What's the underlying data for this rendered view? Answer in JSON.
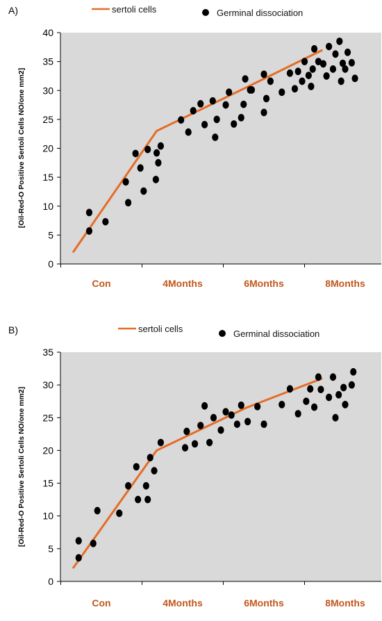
{
  "chart_data": [
    {
      "type": "scatter",
      "panel_label": "A)",
      "ylabel": "[Oil-Red-O Positive Sertoli Cells NO/one mm2]",
      "categories": [
        "Con",
        "4Months",
        "6Months",
        "8Months"
      ],
      "ylim": [
        0,
        40
      ],
      "yticks": [
        0,
        5,
        10,
        15,
        20,
        25,
        30,
        35,
        40
      ],
      "grid": false,
      "legend_position": "top",
      "colors": {
        "line": "#e46c27",
        "marker": "#000000",
        "plot_bg": "#d9d9d9",
        "category_label": "#c0571c"
      },
      "line_series": {
        "name": "sertoli cells",
        "x": [
          -0.35,
          0.68,
          1.78,
          2.72
        ],
        "y": [
          2,
          23,
          30.5,
          37
        ]
      },
      "scatter_series": {
        "name": "Germinal dissociation",
        "points": [
          [
            -0.15,
            5.7
          ],
          [
            -0.15,
            8.9
          ],
          [
            0.05,
            7.3
          ],
          [
            0.3,
            14.2
          ],
          [
            0.33,
            10.6
          ],
          [
            0.42,
            19.1
          ],
          [
            0.48,
            16.6
          ],
          [
            0.52,
            12.6
          ],
          [
            0.57,
            19.8
          ],
          [
            0.67,
            14.6
          ],
          [
            0.7,
            17.5
          ],
          [
            0.73,
            20.4
          ],
          [
            0.68,
            19.2
          ],
          [
            0.98,
            24.9
          ],
          [
            1.07,
            22.8
          ],
          [
            1.13,
            26.5
          ],
          [
            1.22,
            27.7
          ],
          [
            1.27,
            24.1
          ],
          [
            1.37,
            28.2
          ],
          [
            1.4,
            21.9
          ],
          [
            1.42,
            25
          ],
          [
            1.53,
            27.5
          ],
          [
            1.57,
            29.7
          ],
          [
            1.63,
            24.2
          ],
          [
            1.72,
            25.3
          ],
          [
            1.75,
            27.6
          ],
          [
            1.77,
            32
          ],
          [
            1.83,
            30.1
          ],
          [
            1.85,
            30.1
          ],
          [
            2.0,
            32.8
          ],
          [
            2.0,
            26.2
          ],
          [
            2.03,
            28.6
          ],
          [
            2.08,
            31.6
          ],
          [
            2.22,
            29.7
          ],
          [
            2.32,
            33
          ],
          [
            2.38,
            30.3
          ],
          [
            2.42,
            33.3
          ],
          [
            2.47,
            31.6
          ],
          [
            2.5,
            35
          ],
          [
            2.55,
            32.6
          ],
          [
            2.58,
            30.7
          ],
          [
            2.6,
            33.7
          ],
          [
            2.62,
            37.2
          ],
          [
            2.67,
            35
          ],
          [
            2.73,
            34.6
          ],
          [
            2.77,
            32.5
          ],
          [
            2.8,
            37.6
          ],
          [
            2.85,
            33.7
          ],
          [
            2.88,
            36.3
          ],
          [
            2.93,
            38.5
          ],
          [
            2.95,
            31.6
          ],
          [
            2.97,
            34.7
          ],
          [
            3.0,
            33.7
          ],
          [
            3.03,
            36.6
          ],
          [
            3.08,
            34.8
          ],
          [
            3.12,
            32.1
          ]
        ]
      }
    },
    {
      "type": "scatter",
      "panel_label": "B)",
      "ylabel": "[Oil-Red-O Positive Sertoli Cells NO/one mm2]",
      "categories": [
        "Con",
        "4Months",
        "6Months",
        "8Months"
      ],
      "ylim": [
        0,
        35
      ],
      "yticks": [
        0,
        5,
        10,
        15,
        20,
        25,
        30,
        35
      ],
      "grid": false,
      "legend_position": "top",
      "colors": {
        "line": "#e46c27",
        "marker": "#000000",
        "plot_bg": "#d9d9d9",
        "category_label": "#c0571c"
      },
      "line_series": {
        "name": "sertoli cells",
        "x": [
          -0.35,
          0.68,
          1.78,
          2.72
        ],
        "y": [
          2,
          20,
          26.5,
          31
        ]
      },
      "scatter_series": {
        "name": "Germinal dissociation",
        "points": [
          [
            -0.28,
            3.6
          ],
          [
            -0.28,
            6.2
          ],
          [
            -0.1,
            5.8
          ],
          [
            -0.05,
            10.8
          ],
          [
            0.22,
            10.4
          ],
          [
            0.33,
            14.6
          ],
          [
            0.43,
            17.5
          ],
          [
            0.45,
            12.5
          ],
          [
            0.55,
            14.6
          ],
          [
            0.57,
            12.5
          ],
          [
            0.6,
            18.9
          ],
          [
            0.65,
            16.9
          ],
          [
            0.73,
            21.2
          ],
          [
            1.03,
            20.4
          ],
          [
            1.05,
            22.9
          ],
          [
            1.15,
            21.0
          ],
          [
            1.22,
            23.8
          ],
          [
            1.27,
            26.8
          ],
          [
            1.33,
            21.2
          ],
          [
            1.38,
            25.0
          ],
          [
            1.47,
            23.1
          ],
          [
            1.53,
            25.9
          ],
          [
            1.6,
            25.4
          ],
          [
            1.67,
            24.0
          ],
          [
            1.72,
            26.9
          ],
          [
            1.8,
            24.4
          ],
          [
            1.92,
            26.7
          ],
          [
            2.0,
            24.0
          ],
          [
            2.22,
            27.0
          ],
          [
            2.32,
            29.4
          ],
          [
            2.42,
            25.6
          ],
          [
            2.52,
            27.5
          ],
          [
            2.57,
            29.4
          ],
          [
            2.62,
            26.6
          ],
          [
            2.67,
            31.2
          ],
          [
            2.7,
            29.3
          ],
          [
            2.8,
            28.1
          ],
          [
            2.85,
            31.2
          ],
          [
            2.88,
            25.0
          ],
          [
            2.92,
            28.5
          ],
          [
            3.0,
            27.0
          ],
          [
            3.08,
            30.0
          ],
          [
            3.1,
            32.0
          ],
          [
            2.98,
            29.6
          ]
        ]
      }
    }
  ]
}
